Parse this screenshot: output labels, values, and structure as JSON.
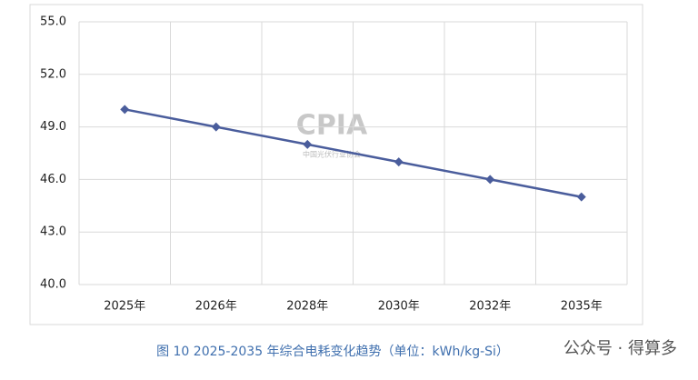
{
  "chart_data": {
    "type": "line",
    "categories": [
      "2025年",
      "2026年",
      "2028年",
      "2030年",
      "2032年",
      "2035年"
    ],
    "series": [
      {
        "color": "#4a5d9c",
        "values": [
          50,
          49,
          48,
          47,
          46,
          45
        ]
      }
    ],
    "ylim": [
      40,
      55
    ],
    "yticks": [
      {
        "value": 40,
        "label": "40.0"
      },
      {
        "value": 43,
        "label": "43.0"
      },
      {
        "value": 46,
        "label": "46.0"
      },
      {
        "value": 49,
        "label": "49.0"
      },
      {
        "value": 52,
        "label": "52.0"
      },
      {
        "value": 55,
        "label": "55.0"
      }
    ],
    "grid": true,
    "caption": "图 10   2025-2035 年综合电耗变化趋势（单位：kWh/kg-Si）",
    "watermark": {
      "logo": "CPIA",
      "org": "中国光伏行业协会"
    },
    "source_tag": "公众号 · 得算多"
  }
}
